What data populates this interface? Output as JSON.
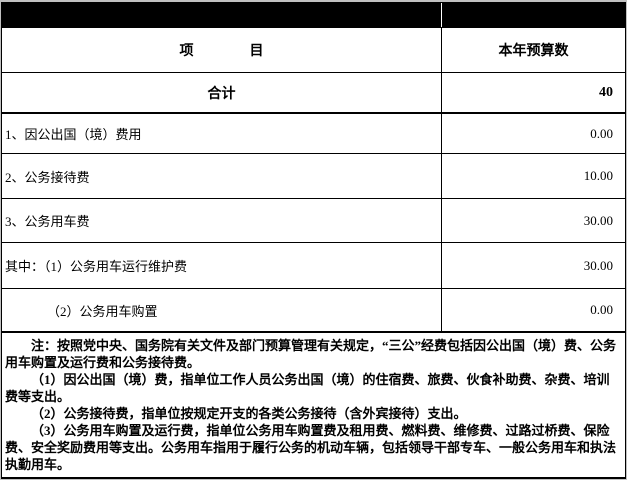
{
  "table": {
    "band": {
      "color": "#000000"
    },
    "header": {
      "item_label": "项　　　　目",
      "budget_label": "本年预算数"
    },
    "total_row": {
      "label": "合计",
      "value": "40"
    },
    "rows": [
      {
        "label": "1、因公出国（境）费用",
        "value": "0.00"
      },
      {
        "label": "2、公务接待费",
        "value": "10.00"
      },
      {
        "label": "3、公务用车费",
        "value": "30.00"
      },
      {
        "label": "其中：（1）公务用车运行维护费",
        "value": "30.00"
      },
      {
        "label": "（2）公务用车购置",
        "value": "0.00"
      }
    ],
    "note": {
      "paragraphs": [
        "注：按照党中央、国务院有关文件及部门预算管理有关规定，“三公”经费包括因公出国（境）费、公务用车购置及运行费和公务接待费。",
        "（1）因公出国（境）费，指单位工作人员公务出国（境）的住宿费、旅费、伙食补助费、杂费、培训费等支出。",
        "（2）公务接待费，指单位按规定开支的各类公务接待（含外宾接待）支出。",
        "（3）公务用车购置及运行费，指单位公务用车购置费及租用费、燃料费、维修费、过路过桥费、保险费、安全奖励费用等支出。公务用车指用于履行公务的机动车辆，包括领导干部专车、一般公务用车和执法执勤用车。"
      ]
    },
    "colors": {
      "border": "#000000",
      "text": "#000000",
      "table_background": "#ffffff",
      "page_background": "#c0c0c0"
    }
  }
}
